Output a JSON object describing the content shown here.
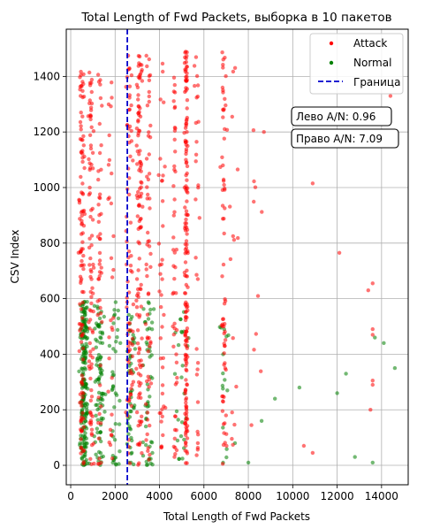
{
  "chart_data": {
    "type": "scatter",
    "title": "Total Length of Fwd Packets, выборка в 10 пакетов",
    "xlabel": "Total Length of Fwd Packets",
    "ylabel": "CSV Index",
    "xlim": [
      -200,
      15200
    ],
    "ylim": [
      -70,
      1570
    ],
    "x_ticks": [
      0,
      2000,
      4000,
      6000,
      8000,
      10000,
      12000,
      14000
    ],
    "y_ticks": [
      0,
      200,
      400,
      600,
      800,
      1000,
      1200,
      1400
    ],
    "grid": true,
    "legend_position": "top-right",
    "threshold": {
      "name": "Граница",
      "x": 2550,
      "color": "#0000cc",
      "style": "dashed"
    },
    "annotations": [
      {
        "text": "Лево A/N: 0.96",
        "x": 9700,
        "y": 1240
      },
      {
        "text": "Право A/N: 7.09",
        "x": 9700,
        "y": 1160
      }
    ],
    "series": [
      {
        "name": "Attack",
        "color": "#ff0000",
        "clusters": [
          {
            "x": 500,
            "spread": 180,
            "y_range": [
              0,
              1420
            ],
            "n": 120
          },
          {
            "x": 900,
            "spread": 180,
            "y_range": [
              0,
              1420
            ],
            "n": 90
          },
          {
            "x": 1300,
            "spread": 150,
            "y_range": [
              0,
              1420
            ],
            "n": 50
          },
          {
            "x": 1800,
            "spread": 200,
            "y_range": [
              0,
              1420
            ],
            "n": 30
          },
          {
            "x": 2650,
            "spread": 250,
            "y_range": [
              0,
              1480
            ],
            "n": 80
          },
          {
            "x": 3100,
            "spread": 200,
            "y_range": [
              0,
              1480
            ],
            "n": 120
          },
          {
            "x": 3500,
            "spread": 150,
            "y_range": [
              0,
              1480
            ],
            "n": 60
          },
          {
            "x": 4100,
            "spread": 200,
            "y_range": [
              0,
              1480
            ],
            "n": 40
          },
          {
            "x": 4700,
            "spread": 150,
            "y_range": [
              0,
              1480
            ],
            "n": 50
          },
          {
            "x": 5200,
            "spread": 120,
            "y_range": [
              0,
              1490
            ],
            "n": 170
          },
          {
            "x": 5700,
            "spread": 150,
            "y_range": [
              0,
              1480
            ],
            "n": 30
          },
          {
            "x": 6900,
            "spread": 180,
            "y_range": [
              0,
              1490
            ],
            "n": 70
          },
          {
            "x": 7400,
            "spread": 300,
            "y_range": [
              0,
              1480
            ],
            "n": 15
          },
          {
            "x": 8300,
            "spread": 500,
            "y_range": [
              0,
              1300
            ],
            "n": 10
          }
        ],
        "points": [
          [
            8700,
            1200
          ],
          [
            10900,
            1015
          ],
          [
            10500,
            70
          ],
          [
            10900,
            45
          ],
          [
            12100,
            765
          ],
          [
            13400,
            630
          ],
          [
            13600,
            655
          ],
          [
            13600,
            490
          ],
          [
            13600,
            470
          ],
          [
            13600,
            305
          ],
          [
            13600,
            290
          ],
          [
            13500,
            200
          ],
          [
            14400,
            1330
          ]
        ]
      },
      {
        "name": "Normal",
        "color": "#008000",
        "clusters": [
          {
            "x": 600,
            "spread": 250,
            "y_range": [
              0,
              590
            ],
            "n": 200
          },
          {
            "x": 1300,
            "spread": 300,
            "y_range": [
              0,
              590
            ],
            "n": 90
          },
          {
            "x": 2000,
            "spread": 300,
            "y_range": [
              0,
              590
            ],
            "n": 40
          },
          {
            "x": 2700,
            "spread": 300,
            "y_range": [
              0,
              590
            ],
            "n": 50
          },
          {
            "x": 3500,
            "spread": 350,
            "y_range": [
              0,
              590
            ],
            "n": 50
          },
          {
            "x": 5000,
            "spread": 500,
            "y_range": [
              0,
              560
            ],
            "n": 25
          },
          {
            "x": 6900,
            "spread": 300,
            "y_range": [
              0,
              570
            ],
            "n": 15
          }
        ],
        "points": [
          [
            7400,
            80
          ],
          [
            8000,
            10
          ],
          [
            8600,
            160
          ],
          [
            9200,
            240
          ],
          [
            10300,
            280
          ],
          [
            12000,
            260
          ],
          [
            12400,
            330
          ],
          [
            12800,
            30
          ],
          [
            13600,
            10
          ],
          [
            13700,
            460
          ],
          [
            14100,
            440
          ],
          [
            14600,
            350
          ]
        ]
      }
    ]
  }
}
